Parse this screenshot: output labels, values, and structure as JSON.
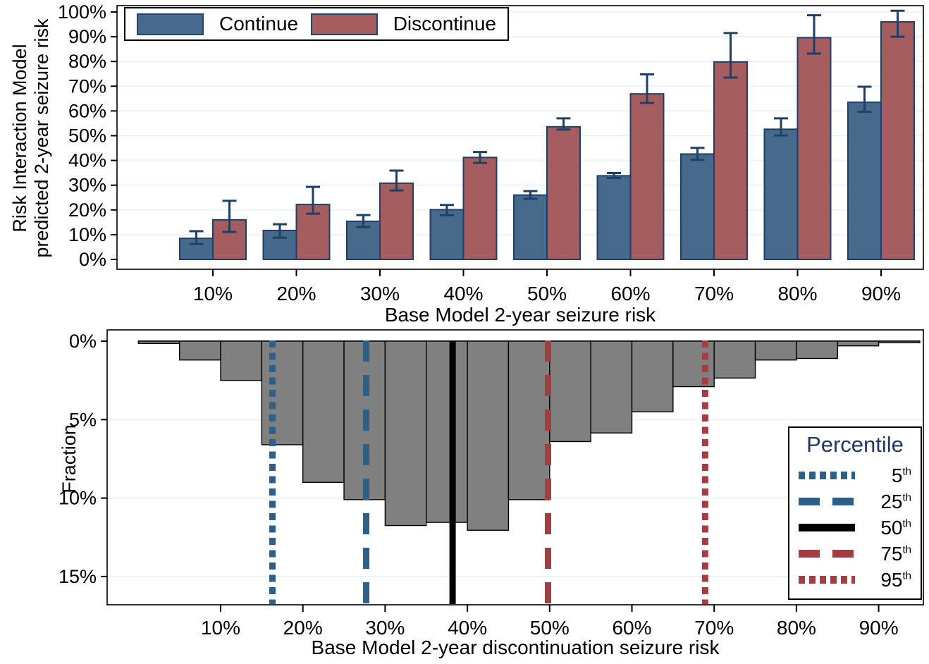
{
  "colors": {
    "continue_fill": "#46698c",
    "discontinue_fill": "#a65d60",
    "bar_outline": "#1f4066",
    "error_bar": "#1f4066",
    "grid_line": "#e8f1f8",
    "panel_border": "#000000",
    "histogram_fill": "#808080",
    "histogram_stroke": "#000000",
    "percentile_blue": "#2c5f8a",
    "percentile_red": "#a23d42",
    "percentile_black": "#000000",
    "legend_title_navy": "#1f3864"
  },
  "chart_data": [
    {
      "type": "bar",
      "title": "",
      "categories": [
        "10%",
        "20%",
        "30%",
        "40%",
        "50%",
        "60%",
        "70%",
        "80%",
        "90%"
      ],
      "xlabel": "Base Model 2-year seizure risk",
      "ylabel": "Risk Interaction Model predicted 2-year seizure risk",
      "ylabel_lines": [
        "Risk Interaction Model",
        "predicted 2-year seizure risk"
      ],
      "ylim": [
        0,
        100
      ],
      "grid": true,
      "legend_position": "top-left",
      "y_ticks": {
        "labels": [
          "0%",
          "10%",
          "20%",
          "30%",
          "40%",
          "50%",
          "60%",
          "70%",
          "80%",
          "90%",
          "100%"
        ],
        "values": [
          0,
          10,
          20,
          30,
          40,
          50,
          60,
          70,
          80,
          90,
          100
        ]
      },
      "series": [
        {
          "name": "Continue",
          "color": "#46698c",
          "values": [
            8.5,
            11.7,
            15.4,
            20.1,
            26.0,
            33.8,
            42.6,
            52.6,
            63.5
          ],
          "ci_low": [
            6.2,
            8.8,
            13.1,
            17.8,
            24.5,
            32.9,
            40.2,
            50.1,
            59.7
          ],
          "ci_high": [
            11.4,
            14.2,
            17.9,
            22.0,
            27.6,
            34.9,
            45.1,
            57.0,
            69.8
          ]
        },
        {
          "name": "Discontinue",
          "color": "#a65d60",
          "values": [
            16.0,
            22.2,
            30.8,
            41.2,
            53.6,
            66.9,
            79.8,
            89.6,
            96.0
          ],
          "ci_low": [
            11.1,
            18.5,
            27.9,
            39.0,
            52.5,
            63.2,
            73.5,
            83.2,
            90.0
          ],
          "ci_high": [
            23.7,
            29.3,
            35.9,
            43.4,
            57.0,
            74.8,
            91.5,
            98.7,
            100.5
          ]
        }
      ]
    },
    {
      "type": "histogram",
      "title": "",
      "xlabel": "Base Model 2-year discontinuation seizure risk",
      "ylabel": "Fraction",
      "y_inverted": true,
      "ylim": [
        0,
        16.9
      ],
      "bin_start": 0,
      "bin_width": 5,
      "fractions": [
        0.15,
        1.2,
        2.5,
        6.6,
        9.0,
        10.1,
        11.75,
        11.55,
        12.05,
        10.1,
        6.4,
        5.85,
        4.5,
        2.9,
        2.35,
        1.2,
        1.1,
        0.3,
        0.1
      ],
      "bar_fill": "#808080",
      "bar_stroke": "#000000",
      "y_ticks": {
        "labels": [
          "0%",
          "5%",
          "10%",
          "15%"
        ],
        "values": [
          0,
          5,
          10,
          15
        ]
      },
      "x_ticks": {
        "labels": [
          "10%",
          "20%",
          "30%",
          "40%",
          "50%",
          "60%",
          "70%",
          "80%",
          "90%"
        ],
        "values": [
          10,
          20,
          30,
          40,
          50,
          60,
          70,
          80,
          90
        ]
      },
      "percentile_legend": {
        "title": "Percentile",
        "entries": [
          {
            "label": "5",
            "sup": "th",
            "value": 16.3,
            "color": "#2c5f8a",
            "style": "dotted"
          },
          {
            "label": "25",
            "sup": "th",
            "value": 27.7,
            "color": "#2c5f8a",
            "style": "dashed"
          },
          {
            "label": "50",
            "sup": "th",
            "value": 38.2,
            "color": "#000000",
            "style": "solid"
          },
          {
            "label": "75",
            "sup": "th",
            "value": 49.8,
            "color": "#a23d42",
            "style": "dashed"
          },
          {
            "label": "95",
            "sup": "th",
            "value": 68.9,
            "color": "#a23d42",
            "style": "dotted"
          }
        ]
      }
    }
  ]
}
